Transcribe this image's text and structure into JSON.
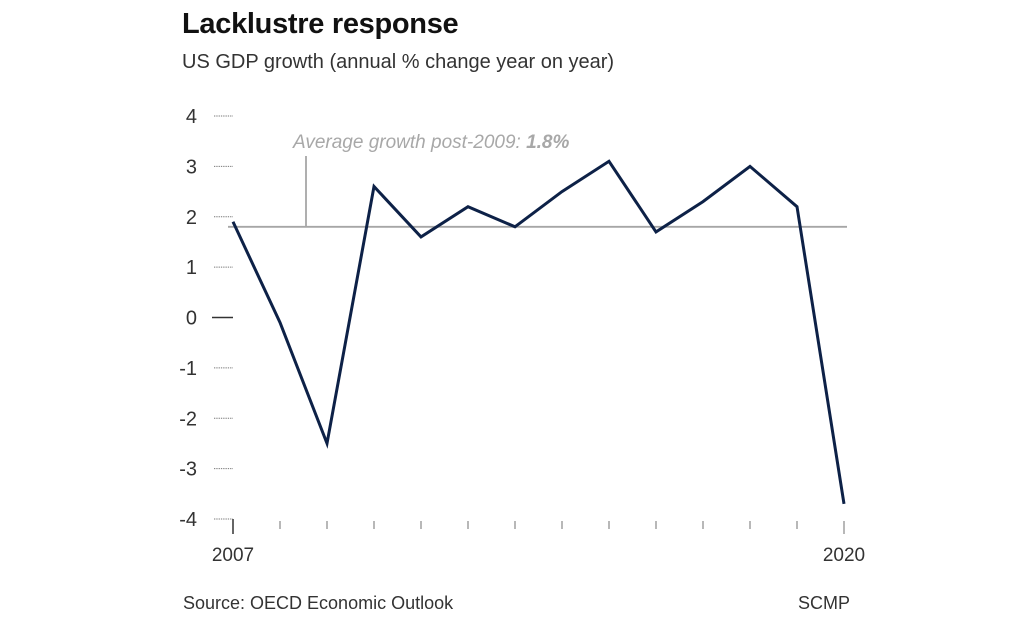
{
  "header": {
    "title": "Lacklustre response",
    "subtitle": "US GDP growth (annual % change year on year)"
  },
  "footer": {
    "source": "Source: OECD Economic Outlook",
    "credit": "SCMP"
  },
  "colors": {
    "series_line": "#0d2147",
    "average_line": "#a6a6a6",
    "annotation_text": "#a8a8a8",
    "axis_text": "#333333"
  },
  "chart_data": {
    "type": "line",
    "title": "Lacklustre response",
    "subtitle": "US GDP growth (annual % change year on year)",
    "xlabel": "",
    "ylabel": "",
    "x": [
      2007,
      2008,
      2009,
      2010,
      2011,
      2012,
      2013,
      2014,
      2015,
      2016,
      2017,
      2018,
      2019,
      2020
    ],
    "series": [
      {
        "name": "US GDP growth",
        "values": [
          1.9,
          -0.1,
          -2.5,
          2.6,
          1.6,
          2.2,
          1.8,
          2.5,
          3.1,
          1.7,
          2.3,
          3.0,
          2.2,
          -3.7
        ]
      }
    ],
    "ylim": [
      -4,
      4
    ],
    "yticks": [
      4,
      3,
      2,
      1,
      0,
      -1,
      -2,
      -3,
      -4
    ],
    "ytick_labels": [
      "4",
      "3",
      "2",
      "1",
      "0",
      "-1",
      "-2",
      "-3",
      "-4"
    ],
    "xtick_labels_shown": {
      "2007": "2007",
      "2020": "2020"
    },
    "xtick_labels": [
      "2007",
      "2020"
    ],
    "reference_line": {
      "value": 1.8,
      "label": "Average growth post-2009: ",
      "label_value": "1.8%"
    },
    "grid": false,
    "legend": "none"
  }
}
